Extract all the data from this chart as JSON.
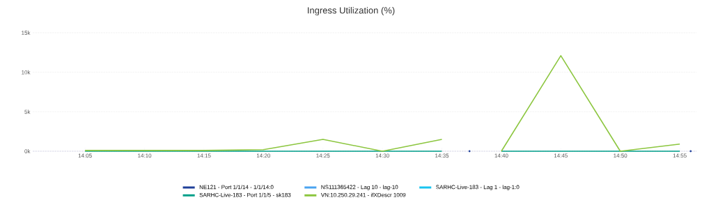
{
  "chart_data": {
    "type": "line",
    "title": "Ingress Utilization (%)",
    "x": [
      14.0833,
      14.1667,
      14.25,
      14.3333,
      14.4167,
      14.5,
      14.5833,
      14.625,
      14.6667,
      14.75,
      14.8333,
      14.9167
    ],
    "xlim": [
      14.01,
      14.94
    ],
    "xticks": [
      {
        "value": 14.0833,
        "label": "14:05"
      },
      {
        "value": 14.1667,
        "label": "14:10"
      },
      {
        "value": 14.25,
        "label": "14:15"
      },
      {
        "value": 14.3333,
        "label": "14:20"
      },
      {
        "value": 14.4167,
        "label": "14:25"
      },
      {
        "value": 14.5,
        "label": "14:30"
      },
      {
        "value": 14.5833,
        "label": "14:35"
      },
      {
        "value": 14.6667,
        "label": "14:40"
      },
      {
        "value": 14.75,
        "label": "14:45"
      },
      {
        "value": 14.8333,
        "label": "14:50"
      },
      {
        "value": 14.9167,
        "label": "14:55"
      }
    ],
    "ylim": [
      0,
      15000
    ],
    "yticks": [
      {
        "value": 0,
        "label": "0k"
      },
      {
        "value": 5000,
        "label": "5k"
      },
      {
        "value": 10000,
        "label": "10k"
      },
      {
        "value": 15000,
        "label": "15k"
      }
    ],
    "grid": "y",
    "legend": "bottom",
    "marker": "none",
    "series": [
      {
        "name": "NE121 - Port 1/1/14 - 1/1/14:0",
        "color": "#1f3f99",
        "type": "scatter",
        "x": [
          14.622,
          14.932
        ],
        "values": [
          0,
          0
        ]
      },
      {
        "name": "NS111365422 - Lag 10 - lag-10",
        "color": "#4aa3f0",
        "values": [
          null,
          null,
          null,
          null,
          null,
          null,
          null,
          null,
          null,
          null,
          null,
          null
        ]
      },
      {
        "name": "SARHC-Live-183 - Lag 1 - lag-1:0",
        "color": "#19c4f0",
        "values": [
          null,
          null,
          null,
          null,
          null,
          null,
          null,
          null,
          null,
          null,
          null,
          null
        ]
      },
      {
        "name": "SARHC-Live-183 - Port 1/1/5 - sk183",
        "color": "#00a08a",
        "values": [
          0,
          0,
          0,
          0,
          0,
          0,
          0,
          null,
          0,
          0,
          0,
          0
        ]
      },
      {
        "name": "VN:10.250.29.241 - ifXDescr 1009",
        "color": "#8cc63f",
        "values": [
          100,
          100,
          100,
          200,
          1500,
          0,
          1500,
          null,
          0,
          12100,
          0,
          900
        ]
      }
    ]
  }
}
